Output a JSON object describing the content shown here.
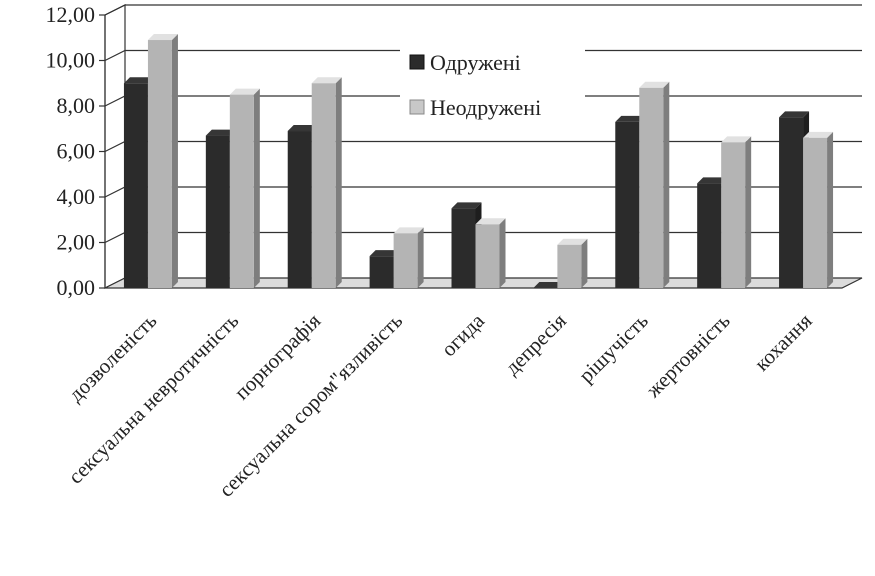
{
  "chart_data": {
    "type": "bar",
    "categories": [
      "дозволеність",
      "сексуальна невротичність",
      "порнографія",
      "сексуальна сором\"язливість",
      "огида",
      "депресія",
      "рішучість",
      "жертовність",
      "кохання"
    ],
    "series": [
      {
        "name": "Одружені",
        "color": "#2b2b2b",
        "values": [
          9.0,
          6.7,
          6.9,
          1.4,
          3.5,
          0.0,
          7.3,
          4.6,
          7.5
        ]
      },
      {
        "name": "Неодружені",
        "color": "#b4b4b4",
        "values": [
          10.9,
          8.5,
          9.0,
          2.4,
          2.8,
          1.9,
          8.8,
          6.4,
          6.6
        ]
      }
    ],
    "y_ticks": [
      "0,00",
      "2,00",
      "4,00",
      "6,00",
      "8,00",
      "10,00",
      "12,00"
    ],
    "ylim": [
      0,
      12
    ],
    "grid": true,
    "legend_position": "top-center"
  }
}
